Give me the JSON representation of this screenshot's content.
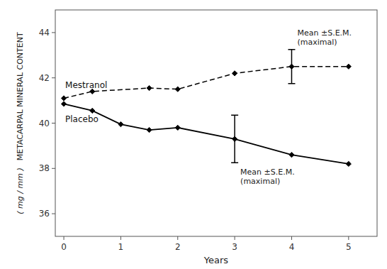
{
  "chart_data": {
    "type": "line",
    "x_label": "Years",
    "y_label": [
      "METACARPAL MINERAL CONTENT",
      "( mg / mm )"
    ],
    "xlim": [
      -0.15,
      5.5
    ],
    "ylim": [
      35.0,
      45.0
    ],
    "xticks": [
      0,
      1,
      2,
      3,
      4,
      5
    ],
    "yticks": [
      36,
      38,
      40,
      42,
      44
    ],
    "grid": false,
    "series": [
      {
        "name": "Mestranol",
        "color": "#000000",
        "line_style": "dashed",
        "marker": "diamond",
        "x": [
          0,
          0.5,
          1.5,
          2.0,
          3.0,
          4.0,
          5.0
        ],
        "values": [
          41.1,
          41.4,
          41.55,
          41.5,
          42.2,
          42.5,
          42.5
        ],
        "errors": [
          null,
          null,
          null,
          null,
          null,
          0.75,
          null
        ],
        "annotation": [
          "Mean ±S.E.M.",
          "(maximal)"
        ]
      },
      {
        "name": "Placebo",
        "color": "#000000",
        "line_style": "solid",
        "marker": "diamond",
        "x": [
          0,
          0.5,
          1.0,
          1.5,
          2.0,
          3.0,
          4.0,
          5.0
        ],
        "values": [
          40.85,
          40.55,
          39.95,
          39.7,
          39.8,
          39.3,
          38.6,
          38.2
        ],
        "errors": [
          null,
          null,
          null,
          null,
          null,
          1.05,
          null,
          null
        ],
        "annotation": [
          "Mean ±S.E.M.",
          "(maximal)"
        ]
      }
    ]
  }
}
